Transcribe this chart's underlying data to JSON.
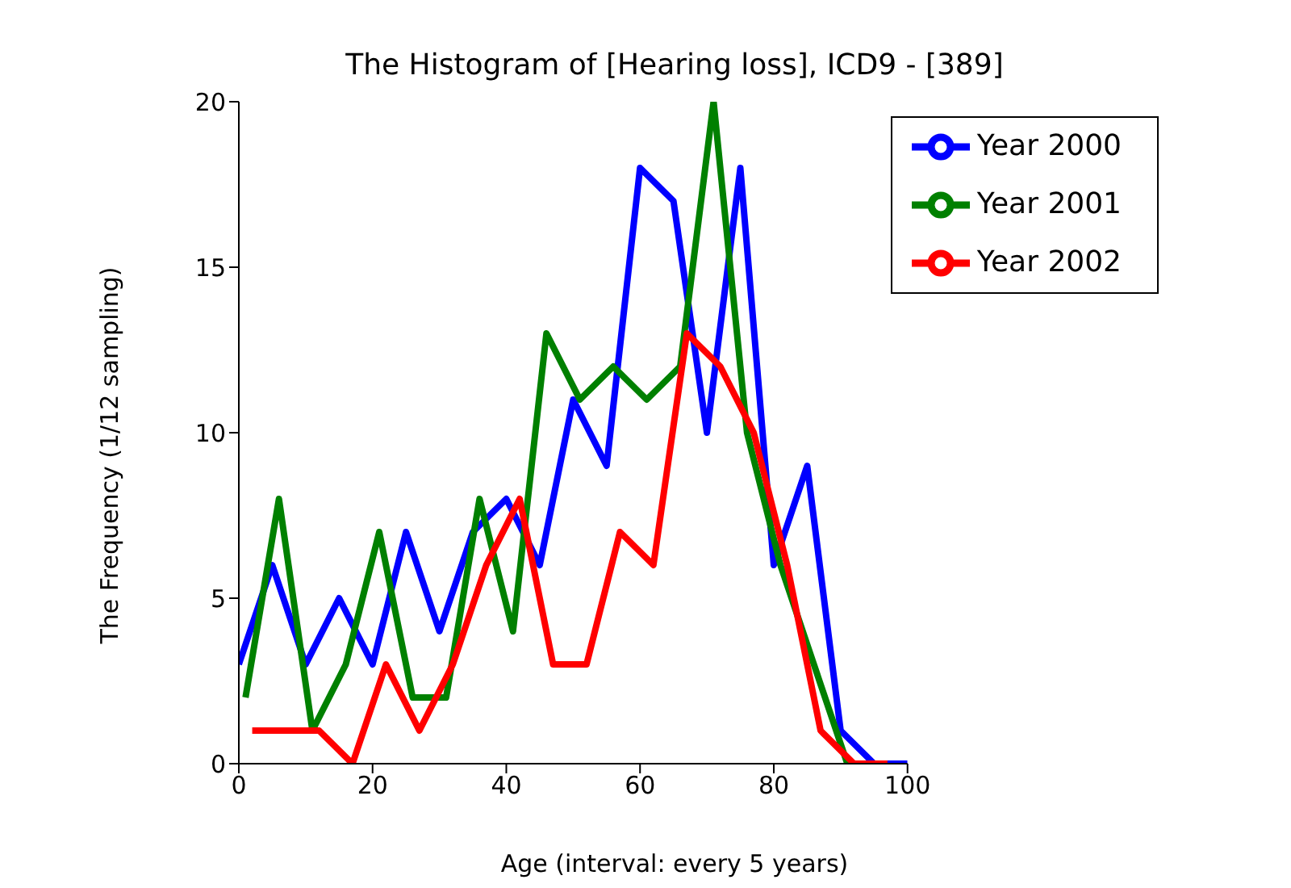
{
  "chart_data": {
    "type": "line",
    "title": "The Histogram of [Hearing loss], ICD9 - [389]",
    "xlabel": "Age (interval: every 5 years)",
    "ylabel": "The Frequency (1/12 sampling)",
    "series": [
      {
        "name": "Year 2000",
        "color": "#0000ff",
        "x": [
          0,
          5,
          10,
          15,
          20,
          25,
          30,
          35,
          40,
          45,
          50,
          55,
          60,
          65,
          70,
          75,
          80,
          85,
          90,
          95,
          100
        ],
        "values": [
          3,
          6,
          3,
          5,
          3,
          7,
          4,
          7,
          8,
          6,
          11,
          9,
          18,
          17,
          10,
          18,
          6,
          9,
          1,
          0,
          0
        ]
      },
      {
        "name": "Year 2001",
        "color": "#008000",
        "x": [
          1,
          6,
          11,
          16,
          21,
          26,
          31,
          36,
          41,
          46,
          51,
          56,
          61,
          66,
          71,
          76,
          81,
          86,
          91,
          96
        ],
        "values": [
          2,
          8,
          1,
          3,
          7,
          2,
          2,
          8,
          4,
          13,
          11,
          12,
          11,
          12,
          20,
          10,
          6,
          3,
          0,
          0
        ]
      },
      {
        "name": "Year 2002",
        "color": "#ff0000",
        "x": [
          2,
          7,
          12,
          17,
          22,
          27,
          32,
          37,
          42,
          47,
          52,
          57,
          62,
          67,
          72,
          77,
          82,
          87,
          92,
          97
        ],
        "values": [
          1,
          1,
          1,
          0,
          3,
          1,
          3,
          6,
          8,
          3,
          3,
          7,
          6,
          13,
          12,
          10,
          6,
          1,
          0,
          0
        ]
      }
    ],
    "xlim": [
      0,
      100
    ],
    "xticks": [
      0,
      20,
      40,
      60,
      80,
      100
    ],
    "ylim": [
      0,
      20
    ],
    "yticks": [
      0,
      5,
      10,
      15,
      20
    ],
    "grid": false,
    "legend": "top right",
    "marker": "none",
    "line_style": "solid"
  }
}
